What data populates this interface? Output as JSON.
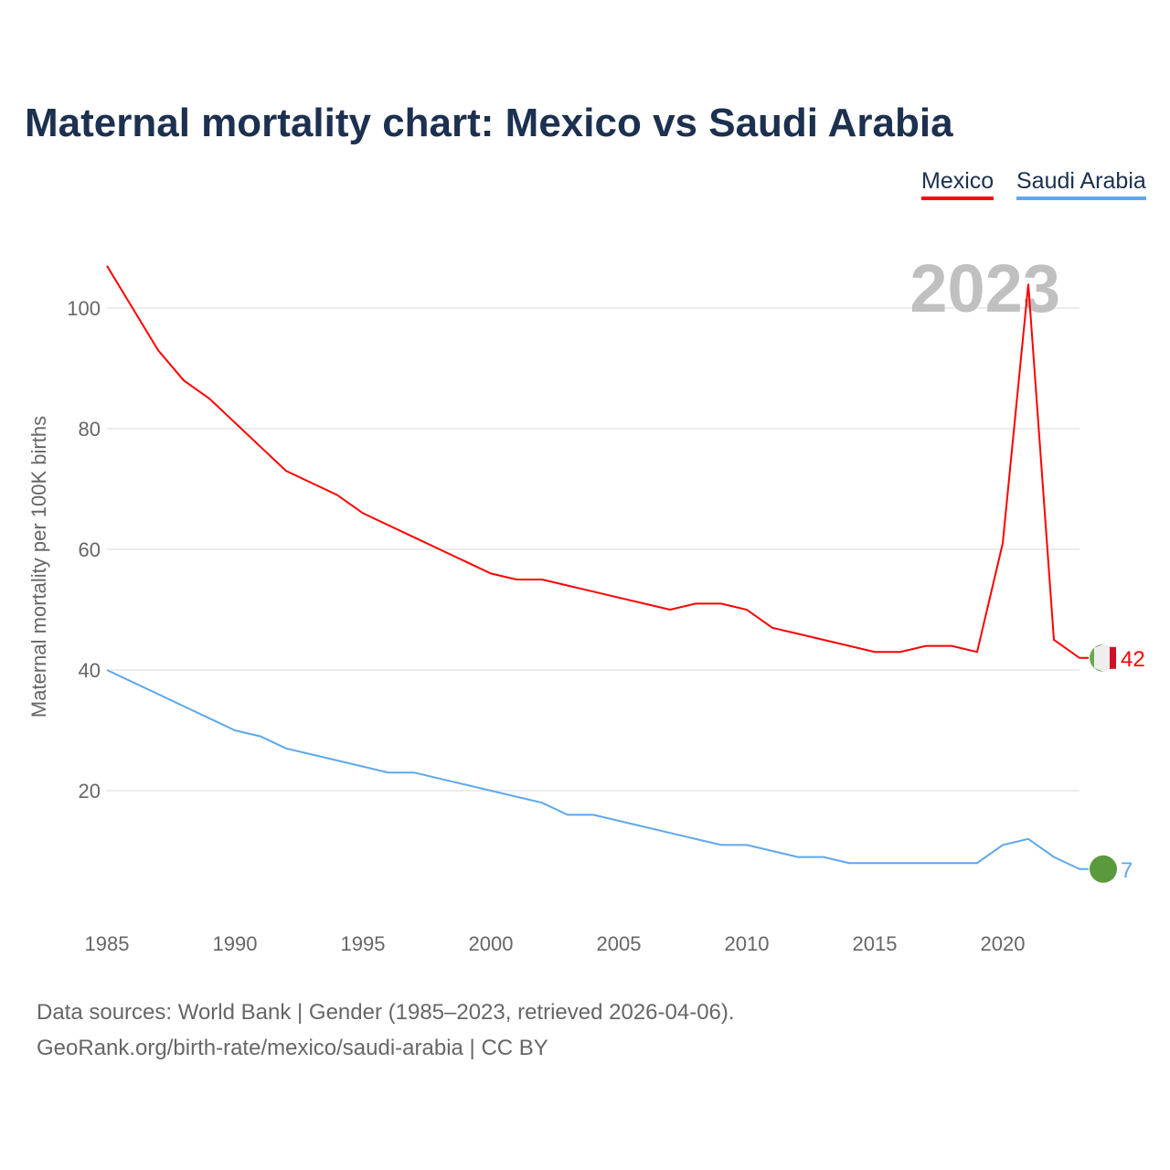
{
  "title": "Maternal mortality chart: Mexico vs Saudi Arabia",
  "year_label": "2023",
  "source_line1": "Data sources: World Bank | Gender (1985–2023, retrieved 2026-04-06).",
  "source_line2": "GeoRank.org/birth-rate/mexico/saudi-arabia | CC BY",
  "chart_data": {
    "type": "line",
    "title": "Maternal mortality chart: Mexico vs Saudi Arabia",
    "ylabel": "Maternal mortality per 100K births",
    "xlabel": "",
    "xlim": [
      1985,
      2023
    ],
    "ylim": [
      0,
      110
    ],
    "xticks": [
      1985,
      1990,
      1995,
      2000,
      2005,
      2010,
      2015,
      2020
    ],
    "yticks": [
      20,
      40,
      60,
      80,
      100
    ],
    "grid": true,
    "legend": "top-right",
    "x": [
      1985,
      1986,
      1987,
      1988,
      1989,
      1990,
      1991,
      1992,
      1993,
      1994,
      1995,
      1996,
      1997,
      1998,
      1999,
      2000,
      2001,
      2002,
      2003,
      2004,
      2005,
      2006,
      2007,
      2008,
      2009,
      2010,
      2011,
      2012,
      2013,
      2014,
      2015,
      2016,
      2017,
      2018,
      2019,
      2020,
      2021,
      2022,
      2023
    ],
    "series": [
      {
        "name": "Mexico",
        "color": "#ff0000",
        "end_label": "42",
        "values": [
          107,
          100,
          93,
          88,
          85,
          81,
          77,
          73,
          71,
          69,
          66,
          64,
          62,
          60,
          58,
          56,
          55,
          55,
          54,
          53,
          52,
          51,
          50,
          51,
          51,
          50,
          47,
          46,
          45,
          44,
          43,
          43,
          44,
          44,
          43,
          61,
          104,
          45,
          42
        ]
      },
      {
        "name": "Saudi Arabia",
        "color": "#5ea8ec",
        "end_label": "7",
        "values": [
          40,
          38,
          36,
          34,
          32,
          30,
          29,
          27,
          26,
          25,
          24,
          23,
          23,
          22,
          21,
          20,
          19,
          18,
          16,
          16,
          15,
          14,
          13,
          12,
          11,
          11,
          10,
          9,
          9,
          8,
          8,
          8,
          8,
          8,
          8,
          11,
          12,
          9,
          7
        ]
      }
    ]
  }
}
